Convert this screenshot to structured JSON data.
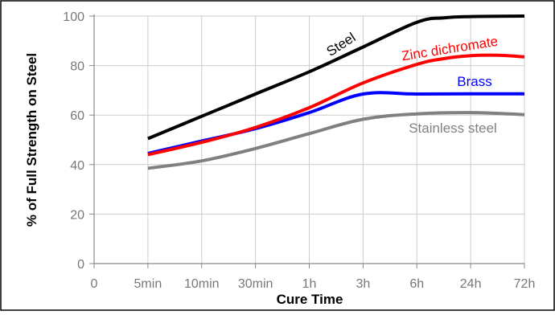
{
  "chart_data": {
    "type": "line",
    "xlabel": "Cure Time",
    "ylabel": "% of Full Strength on Steel",
    "categories": [
      "0",
      "5min",
      "10min",
      "30min",
      "1h",
      "3h",
      "6h",
      "24h",
      "72h"
    ],
    "ylim": [
      0,
      100
    ],
    "yticks": [
      0,
      20,
      40,
      60,
      80,
      100
    ],
    "grid": {
      "x": true,
      "y": true
    },
    "series": [
      {
        "name": "Steel",
        "color": "#000000",
        "points": [
          [
            1,
            50.5
          ],
          [
            2,
            59.5
          ],
          [
            3,
            68.5
          ],
          [
            4,
            77.5
          ],
          [
            5,
            87.5
          ],
          [
            6,
            97.5
          ],
          [
            6.5,
            99.3
          ],
          [
            7,
            99.8
          ],
          [
            8,
            100
          ]
        ]
      },
      {
        "name": "Zinc dichromate",
        "color": "#ff0000",
        "points": [
          [
            1,
            44
          ],
          [
            2,
            49
          ],
          [
            3,
            55
          ],
          [
            4,
            63
          ],
          [
            5,
            73
          ],
          [
            6,
            80.5
          ],
          [
            6.5,
            82.8
          ],
          [
            7,
            84
          ],
          [
            7.5,
            84.2
          ],
          [
            8,
            83.5
          ]
        ]
      },
      {
        "name": "Brass",
        "color": "#0000ff",
        "points": [
          [
            1,
            44.5
          ],
          [
            2,
            49.5
          ],
          [
            3,
            54.5
          ],
          [
            4,
            61
          ],
          [
            5,
            68.5
          ],
          [
            6,
            68.5
          ],
          [
            7,
            68.6
          ],
          [
            8,
            68.6
          ]
        ]
      },
      {
        "name": "Stainless steel",
        "color": "#808080",
        "points": [
          [
            1,
            38.5
          ],
          [
            2,
            41.5
          ],
          [
            3,
            46.5
          ],
          [
            4,
            52.5
          ],
          [
            5,
            58.3
          ],
          [
            6,
            60.5
          ],
          [
            7,
            61
          ],
          [
            8,
            60.2
          ]
        ]
      }
    ]
  }
}
